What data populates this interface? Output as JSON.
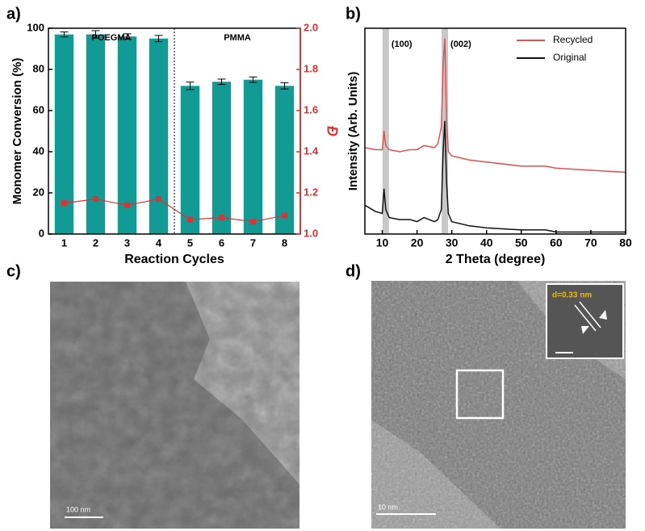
{
  "chart_data": [
    {
      "type": "bar",
      "panel_label": "a)",
      "x_label": "Reaction Cycles",
      "y_label": "Monomer Conversion (%)",
      "y2_label": "Đ",
      "categories": [
        "1",
        "2",
        "3",
        "4",
        "5",
        "6",
        "7",
        "8"
      ],
      "ylim": [
        0,
        100
      ],
      "yticks": [
        0,
        20,
        40,
        60,
        80,
        100
      ],
      "y2lim": [
        1,
        2
      ],
      "y2ticks": [
        {
          "value": 1,
          "label": "1.0"
        },
        {
          "value": 1.2,
          "label": "1.2"
        },
        {
          "value": 1.4,
          "label": "1.4"
        },
        {
          "value": 1.6,
          "label": "1.6"
        },
        {
          "value": 1.8,
          "label": "1.8"
        },
        {
          "value": 2,
          "label": "2.0"
        }
      ],
      "annotations": [
        "POEGMA",
        "PMMA"
      ],
      "series": [
        {
          "type": "bar",
          "color": "#129a94",
          "values": [
            97,
            97,
            96,
            95,
            72,
            74,
            75,
            72
          ],
          "errors": [
            1.2,
            1.8,
            1.3,
            1.5,
            1.8,
            1.3,
            1.3,
            1.5
          ]
        },
        {
          "type": "line",
          "axis": "y2",
          "color": "#e0302f",
          "values": [
            1.15,
            1.17,
            1.14,
            1.17,
            1.07,
            1.08,
            1.06,
            1.09
          ]
        }
      ]
    },
    {
      "type": "line",
      "panel_label": "b)",
      "x_label": "2 Theta (degree)",
      "y_label": "Intensity (Arb. Units)",
      "legend": "upper right",
      "xlim": [
        5,
        80
      ],
      "xticks": [
        10,
        20,
        30,
        40,
        50,
        60,
        70,
        80
      ],
      "ylim": [
        0,
        100
      ],
      "peaks": [
        {
          "x": 11,
          "label": "(100)"
        },
        {
          "x": 28,
          "label": "(002)"
        }
      ],
      "x": [
        5,
        8,
        10,
        10.5,
        11,
        12,
        15,
        18,
        20,
        22,
        25,
        26,
        27,
        27.5,
        28,
        28.5,
        29,
        30,
        35,
        40,
        50,
        57,
        60,
        70,
        80
      ],
      "series": [
        {
          "name": "Recycled",
          "color": "#e05050",
          "values": [
            42,
            41,
            41,
            50,
            43,
            41,
            40,
            41,
            41,
            43,
            42,
            44,
            52,
            82,
            95,
            55,
            40,
            38,
            36,
            35,
            33,
            33,
            32,
            31,
            30
          ]
        },
        {
          "name": "Original",
          "color": "#111111",
          "values": [
            14,
            11,
            10,
            22,
            12,
            8,
            7,
            7,
            6,
            8,
            6,
            7,
            12,
            40,
            55,
            25,
            10,
            6,
            4,
            3,
            2,
            2,
            1,
            1,
            1
          ]
        }
      ]
    }
  ],
  "images": [
    {
      "label": "c)",
      "scale_bar": "100 nm"
    },
    {
      "label": "d)",
      "scale_bar": "10 nm",
      "inset_label": "d=0.33 nm"
    }
  ]
}
